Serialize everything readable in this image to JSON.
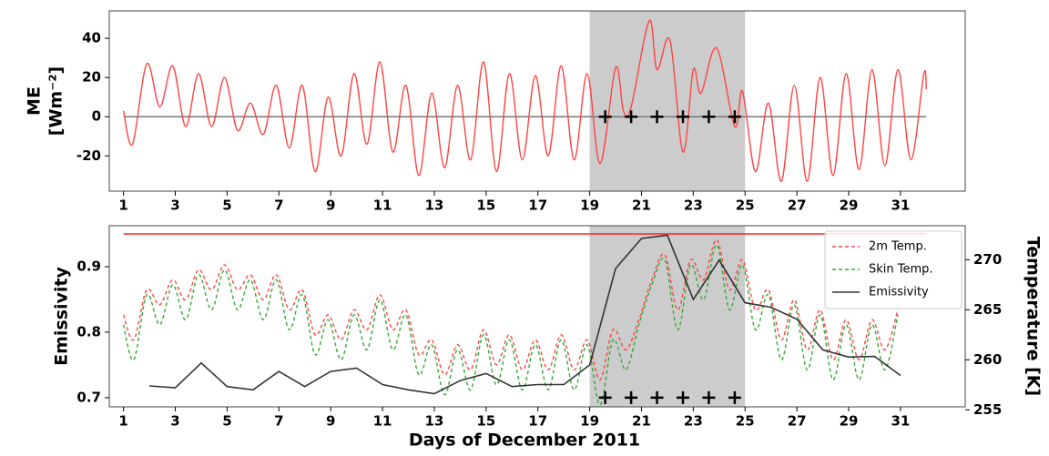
{
  "chart_data": [
    {
      "type": "line",
      "ylabel": [
        "ME",
        "[Wm⁻²]"
      ],
      "xlim": [
        0.45,
        33.5
      ],
      "xticks": [
        1,
        3,
        5,
        7,
        9,
        11,
        13,
        15,
        17,
        19,
        21,
        23,
        25,
        27,
        29,
        31
      ],
      "ylim": [
        -38,
        54
      ],
      "yticks": [
        -20,
        0,
        20,
        40
      ],
      "shade": [
        19,
        25
      ],
      "markers": {
        "x": [
          19.6,
          20.6,
          21.6,
          22.6,
          23.6,
          24.6
        ],
        "y": 0
      },
      "series": [
        {
          "color": "#ff4444",
          "x": [
            1.0,
            1.35,
            1.9,
            2.4,
            2.9,
            3.4,
            3.9,
            4.4,
            4.9,
            5.4,
            5.9,
            6.4,
            6.9,
            7.4,
            7.9,
            8.4,
            8.9,
            9.4,
            9.9,
            10.4,
            10.9,
            11.4,
            11.9,
            12.4,
            12.9,
            13.4,
            13.9,
            14.4,
            14.9,
            15.4,
            15.9,
            16.4,
            16.9,
            17.4,
            17.9,
            18.4,
            18.9,
            19.4,
            20.0,
            20.3,
            20.6,
            21.3,
            21.6,
            22.1,
            22.6,
            23.0,
            23.3,
            23.9,
            24.6,
            24.9,
            25.4,
            25.9,
            26.4,
            26.9,
            27.4,
            27.9,
            28.4,
            28.9,
            29.4,
            29.9,
            30.4,
            30.9,
            31.4,
            31.9,
            32.0
          ],
          "values": [
            3,
            -14,
            27,
            5,
            26,
            -5,
            22,
            -5,
            20,
            -7,
            7,
            -9,
            16,
            -16,
            16,
            -28,
            10,
            -20,
            22,
            -14,
            28,
            -18,
            16,
            -30,
            12,
            -26,
            16,
            -22,
            28,
            -28,
            22,
            -22,
            21,
            -20,
            26,
            -22,
            22,
            -24,
            25,
            3,
            5,
            49,
            24,
            39,
            -18,
            24,
            12,
            35,
            -5,
            13,
            -28,
            7,
            -33,
            16,
            -33,
            20,
            -30,
            22,
            -27,
            24,
            -25,
            24,
            -22,
            22,
            14
          ]
        }
      ]
    },
    {
      "type": "line",
      "ylabel": "Emissivity",
      "y2label": "Temperature [K]",
      "xlabel": "Days of December 2011",
      "xlim": [
        0.45,
        33.5
      ],
      "xticks": [
        1,
        3,
        5,
        7,
        9,
        11,
        13,
        15,
        17,
        19,
        21,
        23,
        25,
        27,
        29,
        31
      ],
      "ylim": [
        0.686,
        0.9625
      ],
      "yticks": [
        0.7,
        0.8,
        0.9
      ],
      "y2lim": [
        255.3,
        273.4
      ],
      "y2ticks": [
        255,
        260,
        265,
        270
      ],
      "shade": [
        19,
        25
      ],
      "markers": {
        "x": [
          19.6,
          20.6,
          21.6,
          22.6,
          23.6,
          24.6
        ],
        "y": 0.7
      },
      "ref_line": {
        "y": 0.95,
        "color": "#ff2222"
      },
      "legend": "upper right",
      "series": [
        {
          "name": "2m Temp.",
          "color": "#ff4444",
          "dash": true,
          "axis": "y2",
          "x": [
            1.0,
            1.4,
            1.9,
            2.4,
            2.9,
            3.4,
            3.9,
            4.4,
            4.9,
            5.4,
            5.9,
            6.4,
            6.9,
            7.4,
            7.9,
            8.4,
            8.9,
            9.4,
            9.9,
            10.4,
            10.9,
            11.4,
            11.9,
            12.4,
            12.9,
            13.4,
            13.9,
            14.4,
            14.9,
            15.4,
            15.9,
            16.4,
            16.9,
            17.4,
            17.9,
            18.4,
            18.9,
            19.4,
            19.9,
            20.4,
            20.9,
            21.4,
            21.9,
            22.4,
            22.9,
            23.4,
            23.9,
            24.4,
            24.9,
            25.4,
            25.9,
            26.4,
            26.9,
            27.4,
            27.9,
            28.4,
            28.9,
            29.4,
            29.9,
            30.4,
            30.9
          ],
          "values": [
            264.5,
            262,
            267,
            265.5,
            268,
            266,
            269,
            267,
            269.5,
            267,
            268.5,
            266,
            268.5,
            265,
            267,
            262.5,
            264.5,
            262,
            265,
            263,
            266.5,
            263,
            265,
            260.5,
            262,
            258.5,
            261.5,
            259,
            263,
            259.5,
            262.5,
            259,
            262,
            259,
            262.5,
            259,
            262,
            258,
            263,
            261,
            264,
            268,
            270.5,
            265,
            270,
            268,
            272,
            267,
            270,
            265,
            267,
            262,
            266,
            261,
            265,
            260,
            264,
            260,
            264,
            261,
            265
          ]
        },
        {
          "name": "Skin Temp.",
          "color": "#33aa33",
          "dash": true,
          "axis": "y2",
          "x": [
            1.0,
            1.4,
            1.9,
            2.4,
            2.9,
            3.4,
            3.9,
            4.4,
            4.9,
            5.4,
            5.9,
            6.4,
            6.9,
            7.4,
            7.9,
            8.4,
            8.9,
            9.4,
            9.9,
            10.4,
            10.9,
            11.4,
            11.9,
            12.4,
            12.9,
            13.4,
            13.9,
            14.4,
            14.9,
            15.4,
            15.9,
            16.4,
            16.9,
            17.4,
            17.9,
            18.4,
            18.9,
            19.4,
            19.9,
            20.4,
            20.9,
            21.4,
            21.9,
            22.4,
            22.9,
            23.4,
            23.9,
            24.4,
            24.9,
            25.4,
            25.9,
            26.4,
            26.9,
            27.4,
            27.9,
            28.4,
            28.9,
            29.4,
            29.9,
            30.4,
            30.9
          ],
          "values": [
            263.5,
            260,
            266.5,
            263.5,
            267.5,
            264,
            268.5,
            265,
            269,
            265,
            268,
            264,
            268,
            263,
            266.5,
            260.5,
            264,
            260,
            264.5,
            261,
            266,
            261,
            264.5,
            258.5,
            261.5,
            256.5,
            261,
            257,
            262.5,
            257.5,
            262,
            257,
            261.5,
            257,
            262,
            257,
            261.5,
            255.5,
            262,
            259,
            263.5,
            267.5,
            270,
            263,
            269.5,
            266,
            271.5,
            265,
            269.5,
            263,
            266.5,
            260,
            265.5,
            259,
            264.5,
            258,
            263.5,
            258,
            263.5,
            259,
            264.5
          ]
        },
        {
          "name": "Emissivity",
          "color": "#333333",
          "dash": false,
          "axis": "y",
          "x": [
            2,
            3,
            4,
            5,
            6,
            7,
            8,
            9,
            10,
            11,
            12,
            13,
            14,
            15,
            16,
            17,
            18,
            19,
            20,
            21,
            22,
            23,
            24,
            25,
            26,
            27,
            28,
            29,
            30,
            31
          ],
          "values": [
            0.718,
            0.715,
            0.753,
            0.717,
            0.712,
            0.74,
            0.717,
            0.74,
            0.745,
            0.72,
            0.712,
            0.706,
            0.726,
            0.737,
            0.717,
            0.72,
            0.72,
            0.75,
            0.897,
            0.943,
            0.948,
            0.85,
            0.91,
            0.845,
            0.838,
            0.82,
            0.773,
            0.762,
            0.763,
            0.734
          ]
        }
      ]
    }
  ]
}
